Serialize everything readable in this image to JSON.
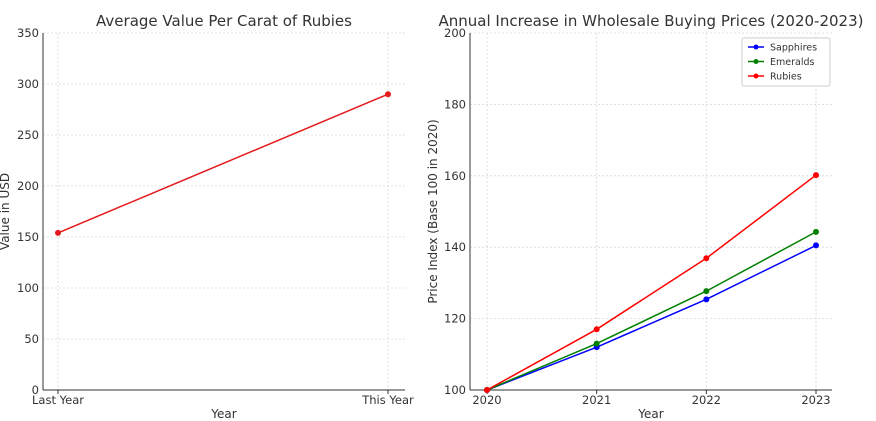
{
  "chart_data": [
    {
      "type": "line",
      "title": "Average Value Per Carat of Rubies",
      "xlabel": "Year",
      "ylabel": "Value in USD",
      "categories": [
        "Last Year",
        "This Year"
      ],
      "ylim": [
        0,
        350
      ],
      "yticks": [
        0,
        50,
        100,
        150,
        200,
        250,
        300,
        350
      ],
      "grid": true,
      "series": [
        {
          "values": [
            154,
            290
          ],
          "color": "#e41a1c"
        }
      ]
    },
    {
      "type": "line",
      "title": "Annual Increase in Wholesale Buying Prices (2020-2023)",
      "xlabel": "Year",
      "ylabel": "Price Index (Base 100 in 2020)",
      "categories": [
        "2020",
        "2021",
        "2022",
        "2023"
      ],
      "ylim": [
        100,
        200
      ],
      "yticks": [
        100,
        120,
        140,
        160,
        180,
        200
      ],
      "grid": true,
      "legend": "top-right",
      "series": [
        {
          "name": "Sapphires",
          "values": [
            100,
            112,
            125.4,
            140.5
          ],
          "color": "#0000ff"
        },
        {
          "name": "Emeralds",
          "values": [
            100,
            113,
            127.7,
            144.3
          ],
          "color": "#008000"
        },
        {
          "name": "Rubies",
          "values": [
            100,
            117,
            136.9,
            160.2
          ],
          "color": "#ff0000"
        }
      ]
    }
  ]
}
